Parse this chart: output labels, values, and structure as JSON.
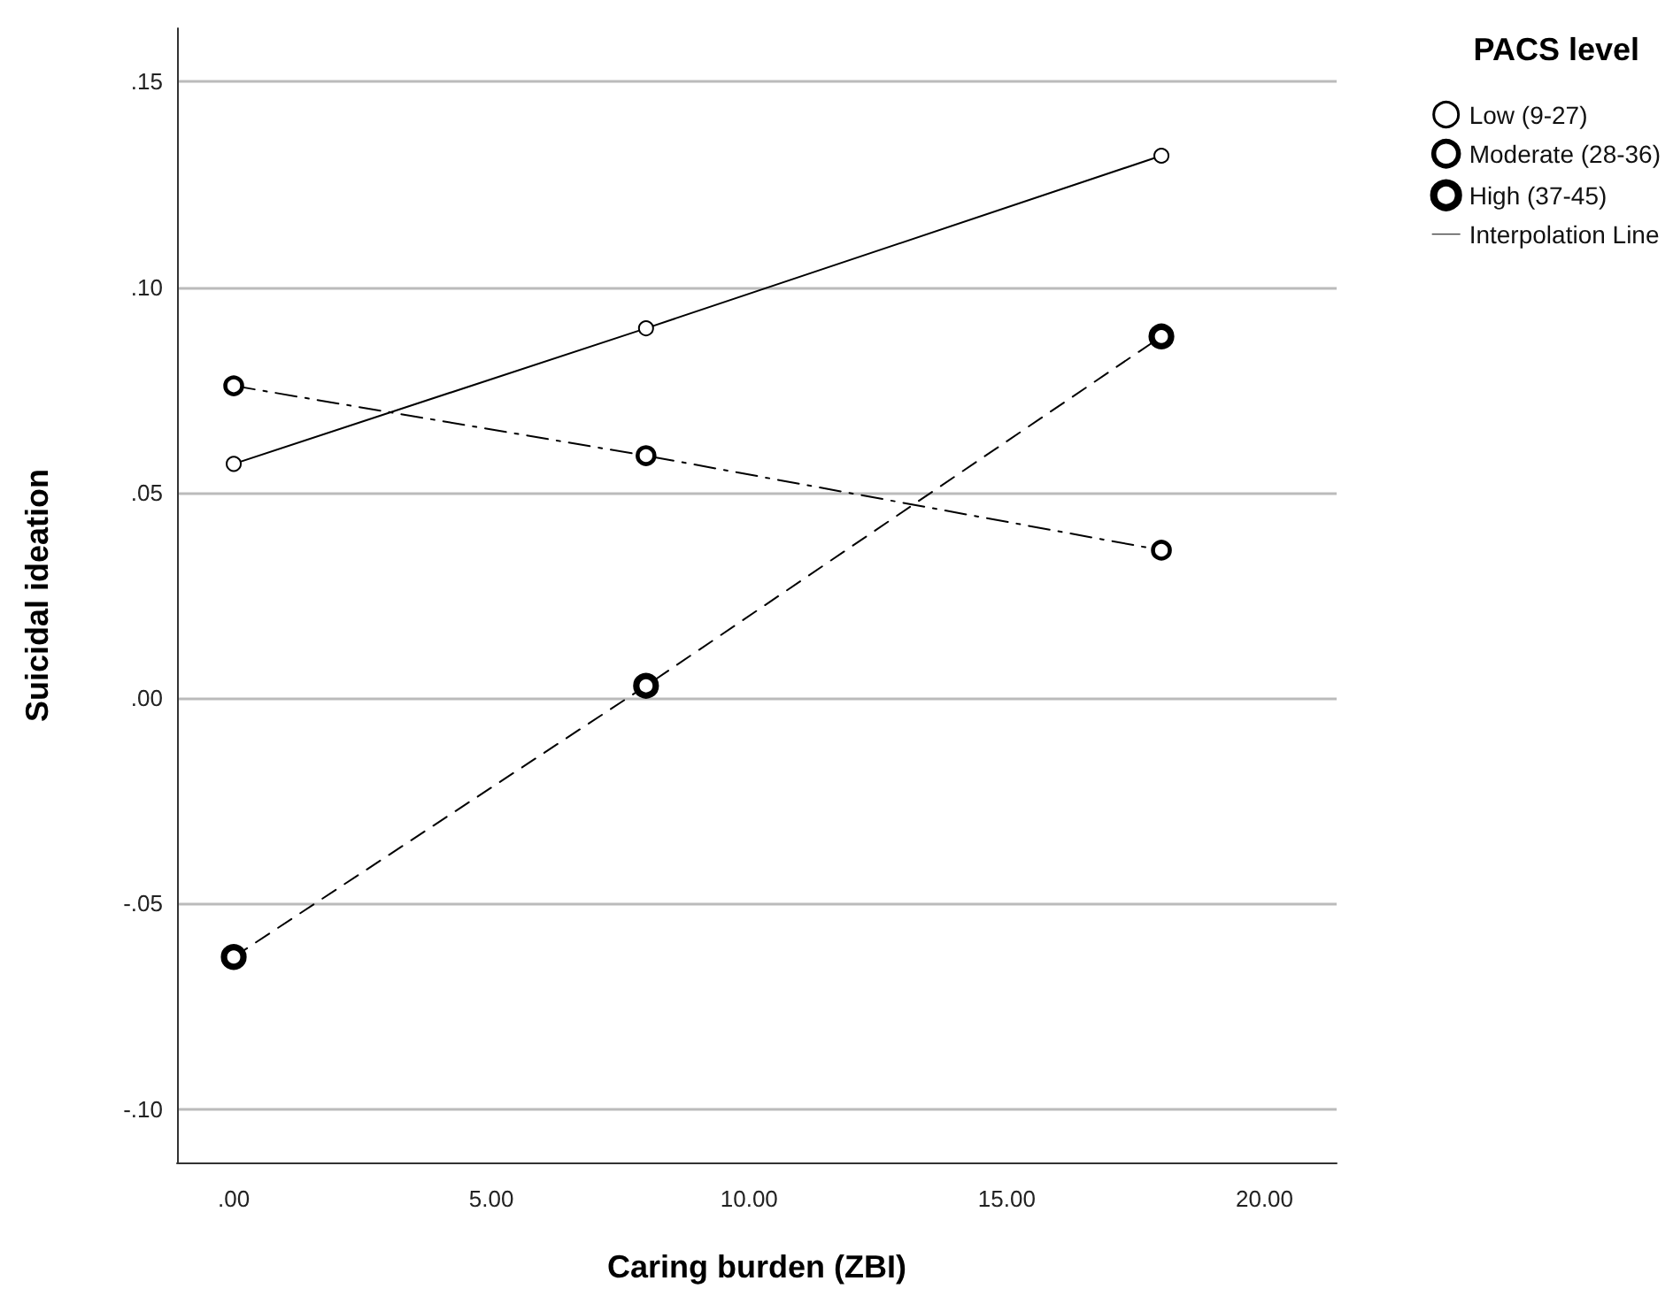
{
  "chart_data": {
    "type": "line",
    "xlabel": "Caring burden (ZBI)",
    "ylabel": "Suicidal ideation",
    "legend_title": "PACS level",
    "x": [
      0,
      8,
      18
    ],
    "series": [
      {
        "name": "Low (9-27)",
        "color": "#000000",
        "values": [
          0.057,
          0.09,
          0.132
        ],
        "line_style": "solid"
      },
      {
        "name": "Moderate (28-36)",
        "color": "#000000",
        "values": [
          0.076,
          0.059,
          0.036
        ],
        "line_style": "dashdot"
      },
      {
        "name": "High (37-45)",
        "color": "#000000",
        "values": [
          -0.063,
          0.003,
          0.088
        ],
        "line_style": "dashed"
      },
      {
        "name": "Interpolation Line",
        "color": "#000000",
        "values": [
          null,
          null,
          null
        ],
        "line_style": "solid",
        "marker": "none"
      }
    ],
    "marker": "circle",
    "xlim": [
      -1.1,
      21.4
    ],
    "xticks": [
      {
        "value": 0,
        "label": ".00"
      },
      {
        "value": 5,
        "label": "5.00"
      },
      {
        "value": 10,
        "label": "10.00"
      },
      {
        "value": 15,
        "label": "15.00"
      },
      {
        "value": 20,
        "label": "20.00"
      }
    ],
    "ylim": [
      -0.113,
      0.163
    ],
    "yticks": [
      {
        "value": -0.1,
        "label": "-.10"
      },
      {
        "value": -0.05,
        "label": "-.05"
      },
      {
        "value": 0,
        "label": ".00"
      },
      {
        "value": 0.05,
        "label": ".05"
      },
      {
        "value": 0.1,
        "label": ".10"
      },
      {
        "value": 0.15,
        "label": ".15"
      }
    ],
    "grid": "y",
    "legend": "top right"
  }
}
